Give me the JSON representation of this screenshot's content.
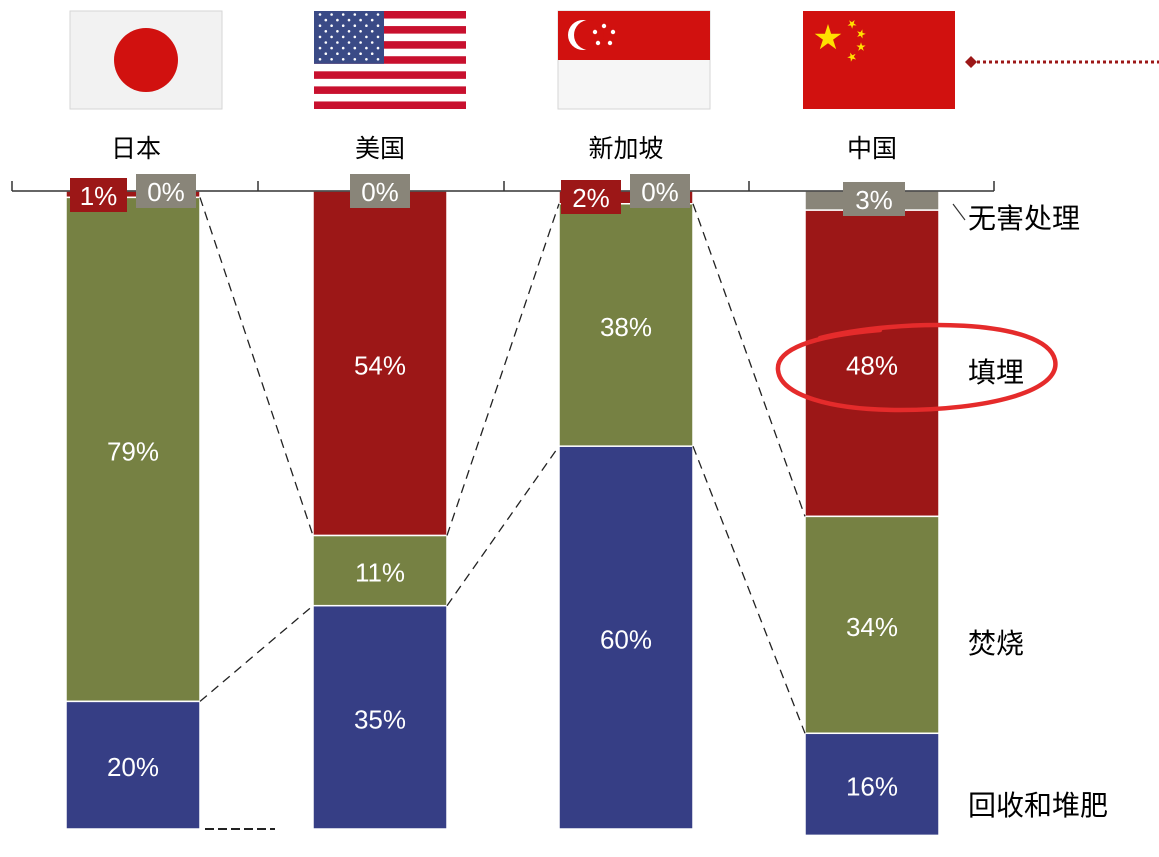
{
  "chart_data": {
    "type": "bar",
    "stacked": true,
    "orientation": "vertical, stacked downward from top axis",
    "categories": [
      "日本",
      "美国",
      "新加坡",
      "中国"
    ],
    "series": [
      {
        "name": "回收和堆肥",
        "values": [
          20,
          35,
          60,
          16
        ],
        "color": "#363E85"
      },
      {
        "name": "焚烧",
        "values": [
          79,
          11,
          38,
          34
        ],
        "color": "#768143"
      },
      {
        "name": "填埋",
        "values": [
          1,
          54,
          2,
          48
        ],
        "color": "#9C1717"
      },
      {
        "name": "无害处理",
        "values": [
          0,
          0,
          0,
          3
        ],
        "color": "#898579"
      }
    ],
    "data_labels": [
      [
        "20%",
        "35%",
        "60%",
        "16%"
      ],
      [
        "79%",
        "11%",
        "38%",
        "34%"
      ],
      [
        "1%",
        "54%",
        "2%",
        "48%"
      ],
      [
        "0%",
        "0%",
        "0%",
        "3%"
      ]
    ],
    "ylim": [
      0,
      100
    ],
    "highlight": "填埋",
    "highlight_category": "中国",
    "connector_lines": "dashed",
    "legend_placement": "right"
  },
  "flags": [
    "japan-flag",
    "usa-flag",
    "singapore-flag",
    "china-flag"
  ],
  "colors": {
    "highlight_ring": "#E52B2B",
    "connector": "#8A1C1C",
    "axis": "#333333"
  }
}
